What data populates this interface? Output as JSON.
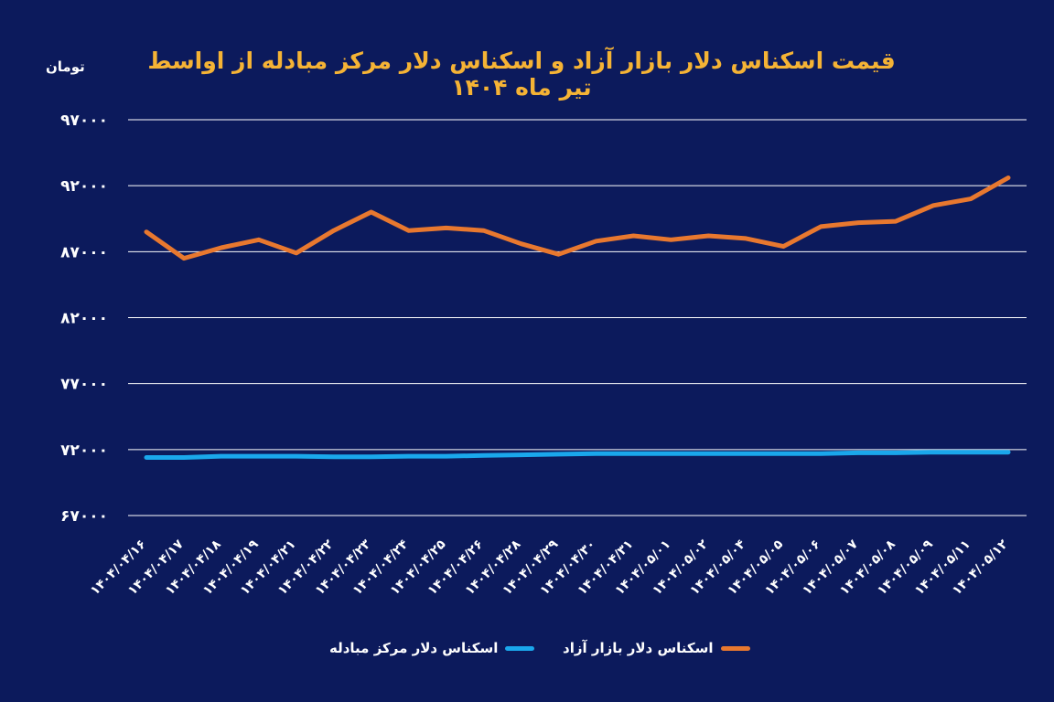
{
  "chart_data": {
    "type": "line",
    "title": "قیمت اسکناس دلار بازار آزاد و اسکناس دلار مرکز مبادله از اواسط تیر ماه ۱۴۰۴",
    "ylabel": "تومان",
    "ylim": [
      67000,
      97000
    ],
    "yticks": [
      67000,
      72000,
      77000,
      82000,
      87000,
      92000,
      97000
    ],
    "ytick_labels": [
      "۶۷۰۰۰",
      "۷۲۰۰۰",
      "۷۷۰۰۰",
      "۸۲۰۰۰",
      "۸۷۰۰۰",
      "۹۲۰۰۰",
      "۹۷۰۰۰"
    ],
    "categories": [
      "۱۴۰۴/۰۴/۱۶",
      "۱۴۰۴/۰۴/۱۷",
      "۱۴۰۴/۰۴/۱۸",
      "۱۴۰۴/۰۴/۱۹",
      "۱۴۰۴/۰۴/۲۱",
      "۱۴۰۴/۰۴/۲۲",
      "۱۴۰۴/۰۴/۲۳",
      "۱۴۰۴/۰۴/۲۴",
      "۱۴۰۴/۰۴/۲۵",
      "۱۴۰۴/۰۴/۲۶",
      "۱۴۰۴/۰۴/۲۸",
      "۱۴۰۴/۰۴/۲۹",
      "۱۴۰۴/۰۴/۳۰",
      "۱۴۰۴/۰۴/۳۱",
      "۱۴۰۴/۰۵/۰۱",
      "۱۴۰۴/۰۵/۰۲",
      "۱۴۰۴/۰۵/۰۴",
      "۱۴۰۴/۰۵/۰۵",
      "۱۴۰۴/۰۵/۰۶",
      "۱۴۰۴/۰۵/۰۷",
      "۱۴۰۴/۰۵/۰۸",
      "۱۴۰۴/۰۵/۰۹",
      "۱۴۰۴/۰۵/۱۱",
      "۱۴۰۴/۰۵/۱۲"
    ],
    "series": [
      {
        "name": "اسکناس دلار بازار آزاد",
        "color": "#e8782f",
        "values": [
          88500,
          86500,
          87300,
          87900,
          86900,
          88600,
          90000,
          88600,
          88800,
          88600,
          87600,
          86800,
          87800,
          88200,
          87900,
          88200,
          88000,
          87400,
          88900,
          89200,
          89300,
          90500,
          91000,
          92600
        ]
      },
      {
        "name": "اسکناس دلار مرکز مبادله",
        "color": "#1aa7ec",
        "values": [
          71400,
          71400,
          71500,
          71500,
          71500,
          71450,
          71450,
          71500,
          71500,
          71550,
          71600,
          71650,
          71700,
          71700,
          71700,
          71700,
          71700,
          71700,
          71700,
          71750,
          71750,
          71800,
          71800,
          71800
        ]
      }
    ],
    "grid": true,
    "legend_position": "bottom"
  }
}
